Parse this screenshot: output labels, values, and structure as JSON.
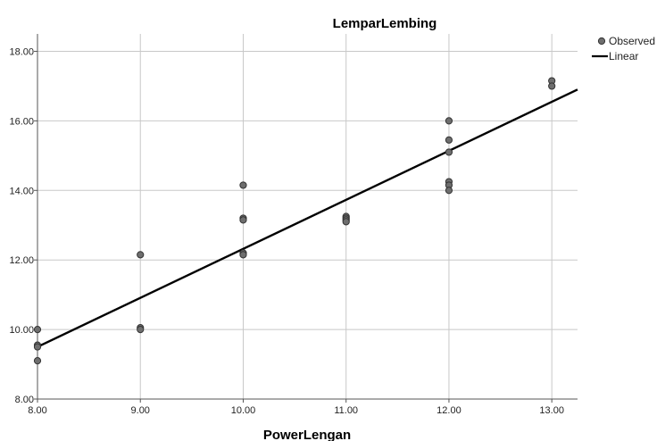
{
  "chart_data": {
    "type": "scatter",
    "title": "LemparLembing",
    "xlabel": "PowerLengan",
    "ylabel": "",
    "xlim": [
      8,
      13.25
    ],
    "ylim": [
      8,
      18.5
    ],
    "x_ticks": [
      8,
      9,
      10,
      11,
      12,
      13
    ],
    "x_tick_labels": [
      "8.00",
      "9.00",
      "10.00",
      "11.00",
      "12.00",
      "13.00"
    ],
    "y_ticks": [
      8,
      10,
      12,
      14,
      16,
      18
    ],
    "y_tick_labels": [
      "8.00",
      "10.00",
      "12.00",
      "14.00",
      "16.00",
      "18.00"
    ],
    "grid": "vertical gridlines at x ticks, horizontal gridlines at y ticks",
    "legend_position": "top-right",
    "series": [
      {
        "name": "Observed",
        "kind": "points",
        "color": "#6e6e6e",
        "points": [
          {
            "x": 8,
            "y": 10.0
          },
          {
            "x": 8,
            "y": 9.55
          },
          {
            "x": 8,
            "y": 9.5
          },
          {
            "x": 8,
            "y": 9.1
          },
          {
            "x": 9,
            "y": 12.15
          },
          {
            "x": 9,
            "y": 10.05
          },
          {
            "x": 9,
            "y": 10.0
          },
          {
            "x": 10,
            "y": 14.15
          },
          {
            "x": 10,
            "y": 13.2
          },
          {
            "x": 10,
            "y": 13.15
          },
          {
            "x": 10,
            "y": 12.2
          },
          {
            "x": 10,
            "y": 12.15
          },
          {
            "x": 11,
            "y": 13.25
          },
          {
            "x": 11,
            "y": 13.2
          },
          {
            "x": 11,
            "y": 13.15
          },
          {
            "x": 11,
            "y": 13.1
          },
          {
            "x": 12,
            "y": 16.0
          },
          {
            "x": 12,
            "y": 15.45
          },
          {
            "x": 12,
            "y": 15.1
          },
          {
            "x": 12,
            "y": 14.25
          },
          {
            "x": 12,
            "y": 14.15
          },
          {
            "x": 12,
            "y": 14.0
          },
          {
            "x": 13,
            "y": 17.15
          },
          {
            "x": 13,
            "y": 17.0
          }
        ]
      },
      {
        "name": "Linear",
        "kind": "line",
        "color": "#000000",
        "points": [
          {
            "x": 8,
            "y": 9.5
          },
          {
            "x": 13.25,
            "y": 16.9
          }
        ]
      }
    ]
  }
}
